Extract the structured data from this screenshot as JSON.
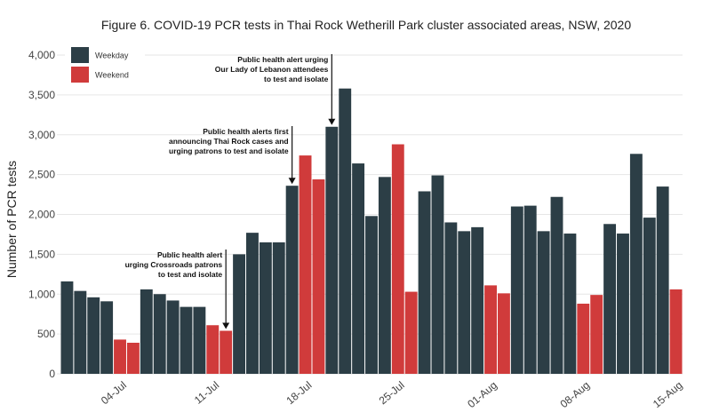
{
  "chart_data": {
    "type": "bar",
    "title": "Figure 6. COVID-19 PCR tests in Thai Rock Wetherill Park cluster associated areas, NSW, 2020",
    "xlabel": "",
    "ylabel": "Number of PCR tests",
    "ylim": [
      0,
      4000
    ],
    "yticks": [
      0,
      500,
      1000,
      1500,
      2000,
      2500,
      3000,
      3500,
      4000
    ],
    "ytick_labels": [
      "0",
      "500",
      "1,000",
      "1,500",
      "2,000",
      "2,500",
      "3,000",
      "3,500",
      "4,000"
    ],
    "grid": true,
    "legend_position": "top-left",
    "colors": {
      "Weekday": "#2c3e46",
      "Weekend": "#d03b3b"
    },
    "x_ticks": [
      {
        "index": 4,
        "label": "04-Jul"
      },
      {
        "index": 11,
        "label": "11-Jul"
      },
      {
        "index": 18,
        "label": "18-Jul"
      },
      {
        "index": 25,
        "label": "25-Jul"
      },
      {
        "index": 32,
        "label": "01-Aug"
      },
      {
        "index": 39,
        "label": "08-Aug"
      },
      {
        "index": 46,
        "label": "15-Aug"
      }
    ],
    "series": [
      {
        "name": "Weekday"
      },
      {
        "name": "Weekend"
      }
    ],
    "days": [
      {
        "date": "2020-06-30",
        "type": "Weekday",
        "value": 1160
      },
      {
        "date": "2020-07-01",
        "type": "Weekday",
        "value": 1040
      },
      {
        "date": "2020-07-02",
        "type": "Weekday",
        "value": 960
      },
      {
        "date": "2020-07-03",
        "type": "Weekday",
        "value": 910
      },
      {
        "date": "2020-07-04",
        "type": "Weekend",
        "value": 430
      },
      {
        "date": "2020-07-05",
        "type": "Weekend",
        "value": 390
      },
      {
        "date": "2020-07-06",
        "type": "Weekday",
        "value": 1060
      },
      {
        "date": "2020-07-07",
        "type": "Weekday",
        "value": 1000
      },
      {
        "date": "2020-07-08",
        "type": "Weekday",
        "value": 920
      },
      {
        "date": "2020-07-09",
        "type": "Weekday",
        "value": 840
      },
      {
        "date": "2020-07-10",
        "type": "Weekday",
        "value": 840
      },
      {
        "date": "2020-07-11",
        "type": "Weekend",
        "value": 610
      },
      {
        "date": "2020-07-12",
        "type": "Weekend",
        "value": 540
      },
      {
        "date": "2020-07-13",
        "type": "Weekday",
        "value": 1500
      },
      {
        "date": "2020-07-14",
        "type": "Weekday",
        "value": 1770
      },
      {
        "date": "2020-07-15",
        "type": "Weekday",
        "value": 1650
      },
      {
        "date": "2020-07-16",
        "type": "Weekday",
        "value": 1650
      },
      {
        "date": "2020-07-17",
        "type": "Weekday",
        "value": 2360
      },
      {
        "date": "2020-07-18",
        "type": "Weekend",
        "value": 2740
      },
      {
        "date": "2020-07-19",
        "type": "Weekend",
        "value": 2440
      },
      {
        "date": "2020-07-20",
        "type": "Weekday",
        "value": 3100
      },
      {
        "date": "2020-07-21",
        "type": "Weekday",
        "value": 3580
      },
      {
        "date": "2020-07-22",
        "type": "Weekday",
        "value": 2640
      },
      {
        "date": "2020-07-23",
        "type": "Weekday",
        "value": 1980
      },
      {
        "date": "2020-07-24",
        "type": "Weekday",
        "value": 2470
      },
      {
        "date": "2020-07-25",
        "type": "Weekend",
        "value": 2880
      },
      {
        "date": "2020-07-26",
        "type": "Weekend",
        "value": 1030
      },
      {
        "date": "2020-07-27",
        "type": "Weekday",
        "value": 2290
      },
      {
        "date": "2020-07-28",
        "type": "Weekday",
        "value": 2490
      },
      {
        "date": "2020-07-29",
        "type": "Weekday",
        "value": 1900
      },
      {
        "date": "2020-07-30",
        "type": "Weekday",
        "value": 1790
      },
      {
        "date": "2020-07-31",
        "type": "Weekday",
        "value": 1840
      },
      {
        "date": "2020-08-01",
        "type": "Weekend",
        "value": 1110
      },
      {
        "date": "2020-08-02",
        "type": "Weekend",
        "value": 1010
      },
      {
        "date": "2020-08-03",
        "type": "Weekday",
        "value": 2100
      },
      {
        "date": "2020-08-04",
        "type": "Weekday",
        "value": 2110
      },
      {
        "date": "2020-08-05",
        "type": "Weekday",
        "value": 1790
      },
      {
        "date": "2020-08-06",
        "type": "Weekday",
        "value": 2220
      },
      {
        "date": "2020-08-07",
        "type": "Weekday",
        "value": 1760
      },
      {
        "date": "2020-08-08",
        "type": "Weekend",
        "value": 880
      },
      {
        "date": "2020-08-09",
        "type": "Weekend",
        "value": 990
      },
      {
        "date": "2020-08-10",
        "type": "Weekday",
        "value": 1880
      },
      {
        "date": "2020-08-11",
        "type": "Weekday",
        "value": 1760
      },
      {
        "date": "2020-08-12",
        "type": "Weekday",
        "value": 2760
      },
      {
        "date": "2020-08-13",
        "type": "Weekday",
        "value": 1960
      },
      {
        "date": "2020-08-14",
        "type": "Weekday",
        "value": 2350
      },
      {
        "date": "2020-08-15",
        "type": "Weekend",
        "value": 1060
      }
    ],
    "annotations": [
      {
        "lines": [
          "Public health alert",
          "urging Crossroads patrons",
          "to test and isolate"
        ],
        "target_index": 12,
        "target_value": 540
      },
      {
        "lines": [
          "Public health alerts first",
          "announcing Thai Rock cases and",
          "urging patrons to test and isolate"
        ],
        "target_index": 17,
        "target_value": 2360
      },
      {
        "lines": [
          "Public health alert urging",
          "Our Lady of Lebanon attendees",
          "to test and isolate"
        ],
        "target_index": 20,
        "target_value": 3100
      }
    ]
  }
}
